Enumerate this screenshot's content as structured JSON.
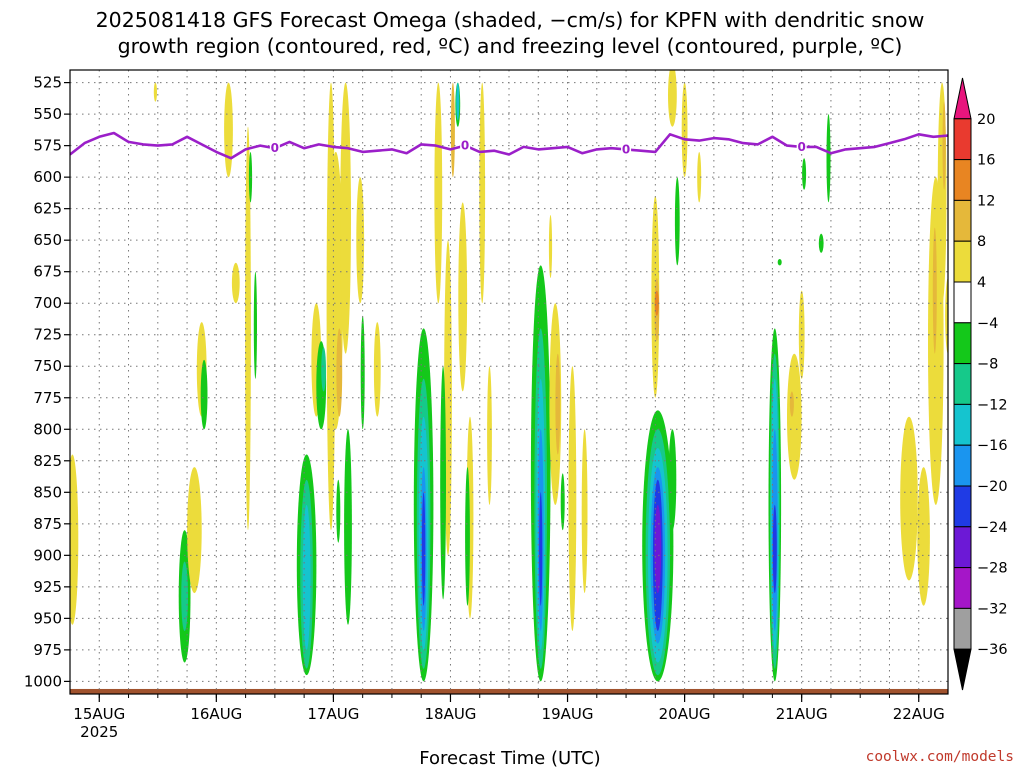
{
  "page": {
    "title_line1": "2025081418 GFS Forecast Omega (shaded, −cm/s) for KPFN with dendritic snow",
    "title_line2": "growth region (contoured, red, ºC) and freezing level (contoured, purple, ºC)",
    "credit": "coolwx.com/models"
  },
  "chart_data": {
    "type": "heatmap",
    "title": "2025081418 GFS Forecast Omega (shaded, −cm/s) for KPFN with dendritic snow growth region (contoured, red, ºC) and freezing level (contoured, purple, ºC)",
    "xlabel": "Forecast Time (UTC)",
    "ylabel": "",
    "x_unit": "hours from 2025-08-14 18Z",
    "x_range": [
      0,
      180
    ],
    "x_grid_step": 6,
    "y_range": [
      1010,
      515
    ],
    "y_scale": "linear-pressure-inverted",
    "grid": true,
    "x_ticks": [
      {
        "label": "15AUG",
        "sub": "2025",
        "hour": 6
      },
      {
        "label": "16AUG",
        "hour": 30
      },
      {
        "label": "17AUG",
        "hour": 54
      },
      {
        "label": "18AUG",
        "hour": 78
      },
      {
        "label": "19AUG",
        "hour": 102
      },
      {
        "label": "20AUG",
        "hour": 126
      },
      {
        "label": "21AUG",
        "hour": 150
      },
      {
        "label": "22AUG",
        "hour": 174
      }
    ],
    "y_ticks": [
      {
        "label": "525",
        "value": 525
      },
      {
        "label": "550",
        "value": 550
      },
      {
        "label": "575",
        "value": 575
      },
      {
        "label": "600",
        "value": 600
      },
      {
        "label": "625",
        "value": 625
      },
      {
        "label": "650",
        "value": 650
      },
      {
        "label": "675",
        "value": 675
      },
      {
        "label": "700",
        "value": 700
      },
      {
        "label": "725",
        "value": 725
      },
      {
        "label": "750",
        "value": 750
      },
      {
        "label": "775",
        "value": 775
      },
      {
        "label": "800",
        "value": 800
      },
      {
        "label": "825",
        "value": 825
      },
      {
        "label": "850",
        "value": 850
      },
      {
        "label": "875",
        "value": 875
      },
      {
        "label": "900",
        "value": 900
      },
      {
        "label": "925",
        "value": 925
      },
      {
        "label": "950",
        "value": 950
      },
      {
        "label": "975",
        "value": 975
      },
      {
        "label": "1000",
        "value": 1000
      }
    ],
    "colorbar": {
      "bins": [
        {
          "lo": 20,
          "hi": null,
          "color": "#e8157d",
          "shape": "arrow-up"
        },
        {
          "lo": 16,
          "hi": 20,
          "color": "#e93a2f"
        },
        {
          "lo": 12,
          "hi": 16,
          "color": "#e88522"
        },
        {
          "lo": 8,
          "hi": 12,
          "color": "#e5b83a"
        },
        {
          "lo": 4,
          "hi": 8,
          "color": "#ecdc3b"
        },
        {
          "lo": -4,
          "hi": 4,
          "color": "#ffffff"
        },
        {
          "lo": -8,
          "hi": -4,
          "color": "#14c81a"
        },
        {
          "lo": -12,
          "hi": -8,
          "color": "#16c98a"
        },
        {
          "lo": -16,
          "hi": -12,
          "color": "#15c4cf"
        },
        {
          "lo": -20,
          "hi": -16,
          "color": "#1a95ef"
        },
        {
          "lo": -24,
          "hi": -20,
          "color": "#1f3be5"
        },
        {
          "lo": -28,
          "hi": -24,
          "color": "#6c19d6"
        },
        {
          "lo": -32,
          "hi": -28,
          "color": "#a516c8"
        },
        {
          "lo": -36,
          "hi": -32,
          "color": "#9f9f9f"
        },
        {
          "lo": null,
          "hi": -36,
          "color": "#000000",
          "shape": "arrow-down"
        }
      ],
      "labels": [
        "20",
        "16",
        "12",
        "8",
        "4",
        "−4",
        "−8",
        "−12",
        "−16",
        "−20",
        "−24",
        "−28",
        "−32",
        "−36"
      ]
    },
    "freezing_level": {
      "color": "#9b1fc9",
      "label": "0",
      "label_hours": [
        42,
        81,
        114,
        150
      ],
      "x": [
        0,
        3,
        6,
        9,
        12,
        15,
        18,
        21,
        24,
        27,
        30,
        33,
        36,
        39,
        42,
        45,
        48,
        51,
        54,
        57,
        60,
        63,
        66,
        69,
        72,
        75,
        78,
        81,
        84,
        87,
        90,
        93,
        96,
        99,
        102,
        105,
        108,
        111,
        114,
        117,
        120,
        123,
        126,
        129,
        132,
        135,
        138,
        141,
        144,
        147,
        150,
        153,
        156,
        159,
        162,
        165,
        168,
        171,
        174,
        177,
        180
      ],
      "p": [
        582,
        573,
        568,
        565,
        572,
        574,
        575,
        574,
        568,
        574,
        580,
        585,
        578,
        575,
        577,
        572,
        577,
        574,
        576,
        577,
        580,
        579,
        578,
        581,
        574,
        575,
        578,
        575,
        580,
        579,
        582,
        576,
        578,
        577,
        576,
        581,
        578,
        577,
        578,
        579,
        580,
        566,
        570,
        571,
        569,
        570,
        573,
        574,
        568,
        575,
        576,
        576,
        581,
        578,
        577,
        576,
        573,
        570,
        566,
        568,
        567
      ]
    },
    "omega_regions": [
      {
        "v": 6,
        "h": 0.5,
        "p0": 820,
        "p1": 955,
        "w": 1.2
      },
      {
        "v": 6,
        "h": 17.5,
        "p0": 525,
        "p1": 540,
        "w": 0.3
      },
      {
        "v": -6,
        "h": 23.5,
        "p0": 880,
        "p1": 985,
        "w": 1.2
      },
      {
        "v": -10,
        "h": 23.5,
        "p0": 905,
        "p1": 960,
        "w": 0.7
      },
      {
        "v": 6,
        "h": 25.5,
        "p0": 830,
        "p1": 930,
        "w": 1.5
      },
      {
        "v": 6,
        "h": 27.0,
        "p0": 715,
        "p1": 790,
        "w": 1.0
      },
      {
        "v": -6,
        "h": 27.5,
        "p0": 745,
        "p1": 800,
        "w": 0.7
      },
      {
        "v": 6,
        "h": 32.5,
        "p0": 525,
        "p1": 600,
        "w": 0.9
      },
      {
        "v": 6,
        "h": 34.0,
        "p0": 668,
        "p1": 700,
        "w": 0.8
      },
      {
        "v": 6,
        "h": 36.5,
        "p0": 560,
        "p1": 880,
        "w": 0.6
      },
      {
        "v": -6,
        "h": 37.0,
        "p0": 580,
        "p1": 620,
        "w": 0.3
      },
      {
        "v": -6,
        "h": 38.0,
        "p0": 675,
        "p1": 760,
        "w": 0.3
      },
      {
        "v": -6,
        "h": 48.5,
        "p0": 820,
        "p1": 995,
        "w": 2.0
      },
      {
        "v": -10,
        "h": 48.5,
        "p0": 840,
        "p1": 990,
        "w": 1.3
      },
      {
        "v": -14,
        "h": 48.5,
        "p0": 860,
        "p1": 975,
        "w": 0.8
      },
      {
        "v": 6,
        "h": 50.5,
        "p0": 700,
        "p1": 790,
        "w": 1.0
      },
      {
        "v": -6,
        "h": 51.5,
        "p0": 730,
        "p1": 800,
        "w": 1.0
      },
      {
        "v": -10,
        "h": 52.0,
        "p0": 735,
        "p1": 770,
        "w": 0.5
      },
      {
        "v": 6,
        "h": 53.5,
        "p0": 525,
        "p1": 880,
        "w": 0.9
      },
      {
        "v": 6,
        "h": 54.5,
        "p0": 580,
        "p1": 800,
        "w": 1.5
      },
      {
        "v": 10,
        "h": 55.2,
        "p0": 720,
        "p1": 790,
        "w": 0.6
      },
      {
        "v": 6,
        "h": 56.5,
        "p0": 525,
        "p1": 740,
        "w": 1.1
      },
      {
        "v": -6,
        "h": 55.0,
        "p0": 840,
        "p1": 890,
        "w": 0.4
      },
      {
        "v": -6,
        "h": 57.0,
        "p0": 800,
        "p1": 955,
        "w": 0.8
      },
      {
        "v": 6,
        "h": 59.5,
        "p0": 600,
        "p1": 700,
        "w": 0.8
      },
      {
        "v": -6,
        "h": 60.0,
        "p0": 710,
        "p1": 800,
        "w": 0.4
      },
      {
        "v": 6,
        "h": 63.0,
        "p0": 715,
        "p1": 790,
        "w": 0.7
      },
      {
        "v": -6,
        "h": 72.5,
        "p0": 720,
        "p1": 1000,
        "w": 2.0
      },
      {
        "v": -10,
        "h": 72.5,
        "p0": 760,
        "p1": 990,
        "w": 1.4
      },
      {
        "v": -14,
        "h": 72.5,
        "p0": 790,
        "p1": 975,
        "w": 1.0
      },
      {
        "v": -18,
        "h": 72.5,
        "p0": 830,
        "p1": 960,
        "w": 0.6
      },
      {
        "v": -22,
        "h": 72.5,
        "p0": 850,
        "p1": 940,
        "w": 0.35
      },
      {
        "v": 6,
        "h": 75.5,
        "p0": 525,
        "p1": 700,
        "w": 0.8
      },
      {
        "v": 6,
        "h": 77.5,
        "p0": 650,
        "p1": 900,
        "w": 0.8
      },
      {
        "v": -6,
        "h": 76.5,
        "p0": 750,
        "p1": 935,
        "w": 0.6
      },
      {
        "v": 10,
        "h": 78.5,
        "p0": 525,
        "p1": 600,
        "w": 0.4
      },
      {
        "v": -6,
        "h": 79.5,
        "p0": 525,
        "p1": 560,
        "w": 0.5
      },
      {
        "v": -14,
        "h": 79.5,
        "p0": 525,
        "p1": 555,
        "w": 0.3
      },
      {
        "v": 6,
        "h": 80.5,
        "p0": 620,
        "p1": 770,
        "w": 0.9
      },
      {
        "v": 6,
        "h": 82.0,
        "p0": 790,
        "p1": 950,
        "w": 0.7
      },
      {
        "v": -6,
        "h": 81.5,
        "p0": 830,
        "p1": 940,
        "w": 0.5
      },
      {
        "v": 6,
        "h": 84.5,
        "p0": 525,
        "p1": 700,
        "w": 0.6
      },
      {
        "v": 6,
        "h": 86.0,
        "p0": 750,
        "p1": 860,
        "w": 0.5
      },
      {
        "v": -6,
        "h": 96.5,
        "p0": 670,
        "p1": 1000,
        "w": 2.0
      },
      {
        "v": -10,
        "h": 96.5,
        "p0": 720,
        "p1": 990,
        "w": 1.3
      },
      {
        "v": -14,
        "h": 96.5,
        "p0": 760,
        "p1": 975,
        "w": 0.9
      },
      {
        "v": -18,
        "h": 96.5,
        "p0": 800,
        "p1": 960,
        "w": 0.6
      },
      {
        "v": -22,
        "h": 96.5,
        "p0": 850,
        "p1": 940,
        "w": 0.3
      },
      {
        "v": 6,
        "h": 99.5,
        "p0": 700,
        "p1": 860,
        "w": 1.2
      },
      {
        "v": 8,
        "h": 100.0,
        "p0": 740,
        "p1": 820,
        "w": 0.5
      },
      {
        "v": -6,
        "h": 101.0,
        "p0": 835,
        "p1": 880,
        "w": 0.4
      },
      {
        "v": 6,
        "h": 103.0,
        "p0": 750,
        "p1": 960,
        "w": 0.8
      },
      {
        "v": 6,
        "h": 105.5,
        "p0": 800,
        "p1": 930,
        "w": 0.6
      },
      {
        "v": 6,
        "h": 98.5,
        "p0": 630,
        "p1": 680,
        "w": 0.3
      },
      {
        "v": -6,
        "h": 120.5,
        "p0": 785,
        "p1": 1000,
        "w": 3.2
      },
      {
        "v": -10,
        "h": 120.5,
        "p0": 800,
        "p1": 995,
        "w": 2.5
      },
      {
        "v": -14,
        "h": 120.5,
        "p0": 815,
        "p1": 985,
        "w": 2.0
      },
      {
        "v": -18,
        "h": 120.5,
        "p0": 830,
        "p1": 970,
        "w": 1.5
      },
      {
        "v": -22,
        "h": 120.5,
        "p0": 840,
        "p1": 960,
        "w": 1.0
      },
      {
        "v": -26,
        "h": 120.5,
        "p0": 860,
        "p1": 930,
        "w": 0.7
      },
      {
        "v": -6,
        "h": 123.5,
        "p0": 800,
        "p1": 880,
        "w": 0.8
      },
      {
        "v": 6,
        "h": 120.0,
        "p0": 615,
        "p1": 775,
        "w": 0.8
      },
      {
        "v": 10,
        "h": 120.3,
        "p0": 680,
        "p1": 730,
        "w": 0.5
      },
      {
        "v": 14,
        "h": 120.3,
        "p0": 690,
        "p1": 710,
        "w": 0.4
      },
      {
        "v": -6,
        "h": 124.5,
        "p0": 600,
        "p1": 670,
        "w": 0.5
      },
      {
        "v": 6,
        "h": 123.5,
        "p0": 510,
        "p1": 560,
        "w": 0.9
      },
      {
        "v": 6,
        "h": 126.0,
        "p0": 525,
        "p1": 600,
        "w": 0.6
      },
      {
        "v": 6,
        "h": 129.0,
        "p0": 580,
        "p1": 620,
        "w": 0.4
      },
      {
        "v": -6,
        "h": 144.5,
        "p0": 720,
        "p1": 1000,
        "w": 1.3
      },
      {
        "v": -10,
        "h": 144.5,
        "p0": 740,
        "p1": 990,
        "w": 1.0
      },
      {
        "v": -14,
        "h": 144.5,
        "p0": 760,
        "p1": 975,
        "w": 0.8
      },
      {
        "v": -18,
        "h": 144.5,
        "p0": 800,
        "p1": 960,
        "w": 0.6
      },
      {
        "v": -22,
        "h": 144.5,
        "p0": 860,
        "p1": 930,
        "w": 0.4
      },
      {
        "v": 6,
        "h": 148.5,
        "p0": 740,
        "p1": 840,
        "w": 1.5
      },
      {
        "v": 10,
        "h": 148.0,
        "p0": 770,
        "p1": 790,
        "w": 0.4
      },
      {
        "v": 6,
        "h": 150.0,
        "p0": 690,
        "p1": 760,
        "w": 0.6
      },
      {
        "v": -6,
        "h": 150.5,
        "p0": 585,
        "p1": 610,
        "w": 0.4
      },
      {
        "v": -6,
        "h": 155.5,
        "p0": 550,
        "p1": 620,
        "w": 0.4
      },
      {
        "v": -6,
        "h": 154.0,
        "p0": 645,
        "p1": 660,
        "w": 0.5
      },
      {
        "v": -6,
        "h": 145.5,
        "p0": 665,
        "p1": 670,
        "w": 0.4
      },
      {
        "v": 6,
        "h": 172.0,
        "p0": 790,
        "p1": 920,
        "w": 1.8
      },
      {
        "v": 6,
        "h": 175.0,
        "p0": 830,
        "p1": 940,
        "w": 1.3
      },
      {
        "v": 6,
        "h": 177.5,
        "p0": 600,
        "p1": 860,
        "w": 1.6
      },
      {
        "v": 6,
        "h": 178.8,
        "p0": 525,
        "p1": 700,
        "w": 0.9
      },
      {
        "v": 10,
        "h": 177.3,
        "p0": 640,
        "p1": 740,
        "w": 0.4
      },
      {
        "v": 10,
        "h": 179.2,
        "p0": 540,
        "p1": 610,
        "w": 0.3
      },
      {
        "v": 6,
        "h": 180.0,
        "p0": 680,
        "p1": 740,
        "w": 0.6
      }
    ],
    "terrain": {
      "color": "#a0522d",
      "note": "surface below plot"
    }
  }
}
